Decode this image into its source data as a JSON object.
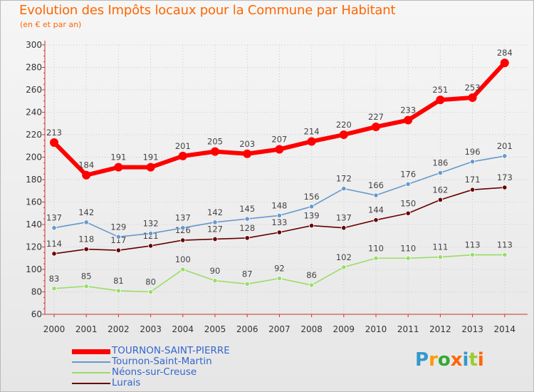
{
  "title": "Evolution des Impôts locaux pour la Commune par Habitant",
  "subtitle": "(en € et par an)",
  "logo_text": "Proxiti",
  "chart_data": {
    "type": "line",
    "title": "Evolution des Impôts locaux pour la Commune par Habitant",
    "subtitle": "(en € et par an)",
    "x": [
      2000,
      2001,
      2002,
      2003,
      2004,
      2005,
      2006,
      2007,
      2008,
      2009,
      2010,
      2011,
      2012,
      2013,
      2014
    ],
    "ylim": [
      60,
      300
    ],
    "yticks": [
      60,
      80,
      100,
      120,
      140,
      160,
      180,
      200,
      220,
      240,
      260,
      280,
      300
    ],
    "grid": "horizontal dotted",
    "legend_position": "bottom-left",
    "series": [
      {
        "name": "TOURNON-SAINT-PIERRE",
        "color": "#ff0000",
        "values": [
          213,
          184,
          191,
          191,
          201,
          205,
          203,
          207,
          214,
          220,
          227,
          233,
          251,
          253,
          284
        ]
      },
      {
        "name": "Tournon-Saint-Martin",
        "color": "#6699cc",
        "values": [
          137,
          142,
          129,
          132,
          137,
          142,
          145,
          148,
          156,
          172,
          166,
          176,
          186,
          196,
          201
        ]
      },
      {
        "name": "Néons-sur-Creuse",
        "color": "#99dd66",
        "values": [
          83,
          85,
          81,
          80,
          100,
          90,
          87,
          92,
          86,
          102,
          110,
          110,
          111,
          113,
          113
        ]
      },
      {
        "name": "Lurais",
        "color": "#660000",
        "values": [
          114,
          118,
          117,
          121,
          126,
          127,
          128,
          133,
          139,
          137,
          144,
          150,
          162,
          171,
          173
        ]
      }
    ]
  }
}
